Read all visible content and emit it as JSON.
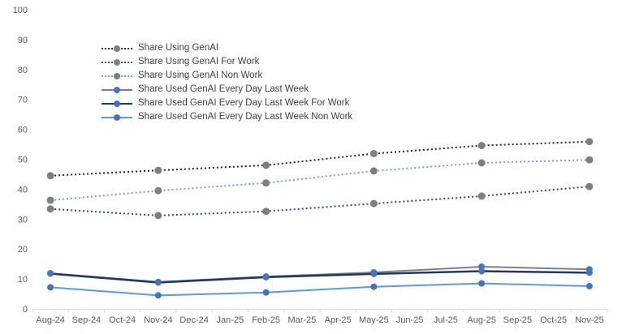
{
  "chart_data": {
    "type": "line",
    "title": "",
    "xlabel": "",
    "ylabel": "",
    "ylim": [
      0,
      100
    ],
    "ytick": 10,
    "grid": false,
    "legend_position": "top-left-inside",
    "axis_line_color": "#d9d9d9",
    "tick_label_color": "#595959",
    "categories": [
      "Aug-24",
      "Sep-24",
      "Oct-24",
      "Nov-24",
      "Dec-24",
      "Jan-25",
      "Feb-25",
      "Mar-25",
      "Apr-25",
      "May-25",
      "Jun-25",
      "Jul-25",
      "Aug-25",
      "Sep-25",
      "Oct-25",
      "Nov-25"
    ],
    "x_point_indices": [
      0,
      3,
      6,
      9,
      12,
      15
    ],
    "point_months": [
      "Aug-24",
      "Nov-24",
      "Feb-25",
      "May-25",
      "Aug-25",
      "Nov-25"
    ],
    "series": [
      {
        "name": "Share Using GenAI",
        "values": [
          44.5,
          46.3,
          48.0,
          51.9,
          54.6,
          55.9
        ],
        "color": "#262626",
        "dash": "dotted",
        "width": 2,
        "marker_color": "#7f7f7f",
        "marker_radius": 4.5
      },
      {
        "name": "Share Using GenAI For Work",
        "values": [
          33.4,
          31.2,
          32.6,
          35.2,
          37.7,
          40.9
        ],
        "color": "#2e4d8a",
        "dash": "dotted",
        "width": 2,
        "marker_color": "#7f7f7f",
        "marker_radius": 4.5
      },
      {
        "name": "Share Using GenAI Non Work",
        "values": [
          36.3,
          39.5,
          42.1,
          46.1,
          48.8,
          49.8
        ],
        "color": "#6fa0d8",
        "dash": "dotted",
        "width": 2,
        "marker_color": "#7f7f7f",
        "marker_radius": 4.5
      },
      {
        "name": "Share Used GenAI Every Day Last Week",
        "values": [
          11.9,
          9.0,
          10.8,
          12.2,
          14.1,
          13.2
        ],
        "color": "#808080",
        "dash": "solid",
        "width": 2,
        "marker_color": "#4472c4",
        "marker_radius": 4
      },
      {
        "name": "Share Used GenAI Every Day Last Week For Work",
        "values": [
          11.8,
          8.8,
          10.6,
          11.7,
          12.6,
          12.1
        ],
        "color": "#1f3864",
        "dash": "solid",
        "width": 2.5,
        "marker_color": "#4472c4",
        "marker_radius": 4
      },
      {
        "name": "Share Used GenAI Every Day Last Week Non Work",
        "values": [
          7.2,
          4.5,
          5.5,
          7.4,
          8.5,
          7.6
        ],
        "color": "#5b9bd5",
        "dash": "solid",
        "width": 2,
        "marker_color": "#4472c4",
        "marker_radius": 4
      }
    ]
  }
}
